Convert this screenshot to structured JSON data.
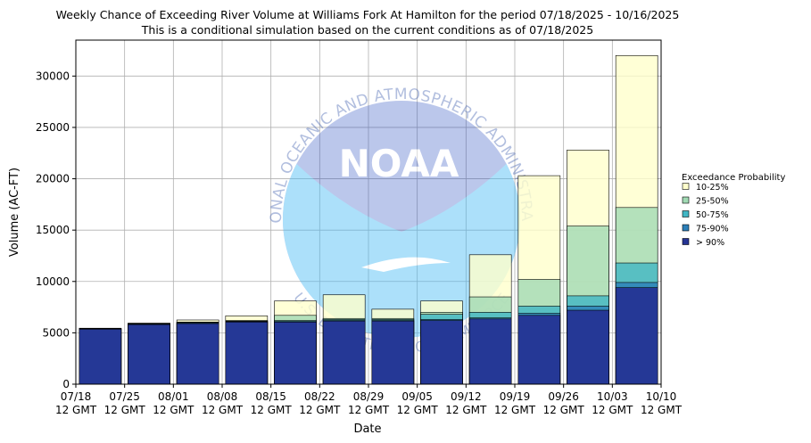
{
  "chart_data": {
    "type": "bar",
    "title": "Weekly Chance of Exceeding River Volume at Williams Fork At Hamilton for the period 07/18/2025 - 10/16/2025",
    "subtitle": "This is a conditional simulation based on the current conditions as of 07/18/2025",
    "xlabel": "Date",
    "ylabel": "Volume (AC-FT)",
    "ylim": [
      0,
      33500
    ],
    "yticks": [
      0,
      5000,
      10000,
      15000,
      20000,
      25000,
      30000
    ],
    "ytick_labels": [
      "0",
      "5000",
      "10000",
      "15000",
      "20000",
      "25000",
      "30000"
    ],
    "xticks": [
      {
        "line1": "07/18",
        "line2": "12 GMT"
      },
      {
        "line1": "07/25",
        "line2": "12 GMT"
      },
      {
        "line1": "08/01",
        "line2": "12 GMT"
      },
      {
        "line1": "08/08",
        "line2": "12 GMT"
      },
      {
        "line1": "08/15",
        "line2": "12 GMT"
      },
      {
        "line1": "08/22",
        "line2": "12 GMT"
      },
      {
        "line1": "08/29",
        "line2": "12 GMT"
      },
      {
        "line1": "09/05",
        "line2": "12 GMT"
      },
      {
        "line1": "09/12",
        "line2": "12 GMT"
      },
      {
        "line1": "09/19",
        "line2": "12 GMT"
      },
      {
        "line1": "09/26",
        "line2": "12 GMT"
      },
      {
        "line1": "10/03",
        "line2": "12 GMT"
      },
      {
        "line1": "10/10",
        "line2": "12 GMT"
      }
    ],
    "grid": true,
    "legend_title": "Exceedance Probability",
    "legend_position": "right",
    "series": [
      {
        "name": "> 90%",
        "color": "#253494",
        "values": [
          5350,
          5800,
          5900,
          6050,
          6050,
          6150,
          6150,
          6200,
          6350,
          6700,
          7200,
          9400
        ]
      },
      {
        "name": "75-90%",
        "color": "#2c7fb8",
        "values": [
          5380,
          5850,
          5950,
          6100,
          6100,
          6200,
          6200,
          6300,
          6450,
          6900,
          7600,
          9900
        ]
      },
      {
        "name": "50-75%",
        "color": "#41b6c4",
        "values": [
          5400,
          5880,
          6000,
          6150,
          6200,
          6300,
          6300,
          6800,
          7000,
          7600,
          8600,
          11800
        ]
      },
      {
        "name": "25-50%",
        "color": "#a1dab4",
        "values": [
          5420,
          5900,
          6050,
          6200,
          6700,
          6400,
          6400,
          7000,
          8500,
          10200,
          15400,
          17200
        ]
      },
      {
        "name": "10-25%",
        "color": "#ffffcc",
        "values": [
          5450,
          5950,
          6250,
          6650,
          8100,
          8700,
          7300,
          8100,
          12600,
          20300,
          22800,
          32000
        ]
      }
    ],
    "watermark": {
      "logo_text": "NOAA",
      "arc_top": "NATIONAL OCEANIC AND ATMOSPHERIC ADMINISTRATION",
      "arc_bottom": "U.S. DEPARTMENT OF COMMERCE"
    }
  }
}
